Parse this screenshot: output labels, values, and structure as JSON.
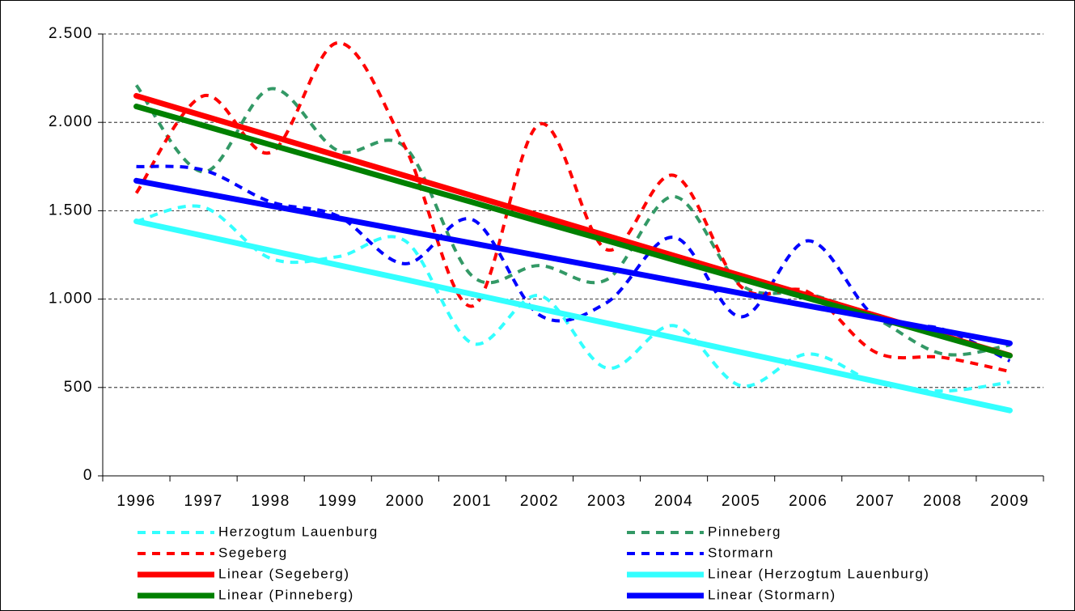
{
  "chart_data": {
    "type": "line",
    "categories": [
      "1996",
      "1997",
      "1998",
      "1999",
      "2000",
      "2001",
      "2002",
      "2003",
      "2004",
      "2005",
      "2006",
      "2007",
      "2008",
      "2009"
    ],
    "ylim": [
      0,
      2500
    ],
    "yticks": [
      0,
      500,
      {
        "value": 1000,
        "label": "1.000"
      },
      {
        "value": 1500,
        "label": "1.500"
      },
      {
        "value": 2000,
        "label": "2.000"
      },
      {
        "value": 2500,
        "label": "2.500"
      }
    ],
    "grid": true,
    "series": [
      {
        "name": "Herzogtum Lauenburg",
        "color": "#33ffff",
        "dashed": true,
        "values": [
          1440,
          1520,
          1230,
          1240,
          1330,
          750,
          1020,
          610,
          850,
          510,
          690,
          530,
          480,
          530
        ]
      },
      {
        "name": "Pinneberg",
        "color": "#339966",
        "dashed": true,
        "values": [
          2210,
          1720,
          2190,
          1840,
          1860,
          1130,
          1190,
          1110,
          1580,
          1080,
          1030,
          890,
          690,
          740
        ]
      },
      {
        "name": "Segeberg",
        "color": "#ff0000",
        "dashed": true,
        "values": [
          1600,
          2150,
          1830,
          2450,
          1860,
          960,
          1990,
          1280,
          1700,
          1070,
          1040,
          700,
          670,
          590
        ]
      },
      {
        "name": "Stormarn",
        "color": "#0000ff",
        "dashed": true,
        "values": [
          1750,
          1730,
          1550,
          1470,
          1200,
          1450,
          910,
          980,
          1350,
          900,
          1330,
          900,
          830,
          650
        ]
      },
      {
        "name": "Linear (Segeberg)",
        "color": "#ff0000",
        "dashed": false,
        "values": [
          2150,
          2037,
          1924,
          1811,
          1698,
          1585,
          1472,
          1359,
          1246,
          1133,
          1020,
          907,
          794,
          681
        ]
      },
      {
        "name": "Linear (Herzogtum Lauenburg)",
        "color": "#33ffff",
        "dashed": false,
        "values": [
          1440,
          1358,
          1275,
          1193,
          1111,
          1028,
          946,
          864,
          782,
          699,
          617,
          535,
          452,
          370
        ]
      },
      {
        "name": "Linear (Pinneberg)",
        "color": "#008000",
        "dashed": false,
        "values": [
          2090,
          1982,
          1873,
          1765,
          1656,
          1548,
          1439,
          1331,
          1222,
          1114,
          1005,
          897,
          788,
          680
        ]
      },
      {
        "name": "Linear (Stormarn)",
        "color": "#0000ff",
        "dashed": false,
        "values": [
          1670,
          1599,
          1528,
          1458,
          1387,
          1316,
          1245,
          1175,
          1104,
          1033,
          962,
          892,
          821,
          750
        ]
      }
    ]
  }
}
